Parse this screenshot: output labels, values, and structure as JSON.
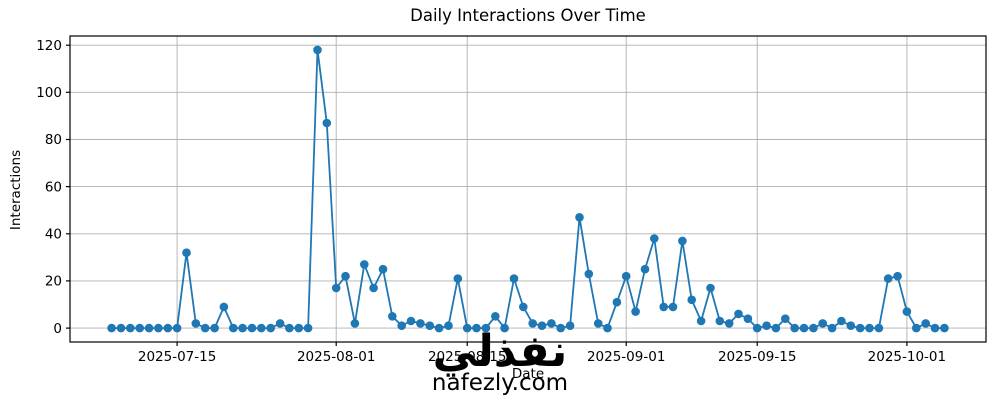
{
  "chart_data": {
    "type": "line",
    "title": "Daily Interactions Over Time",
    "xlabel": "Date",
    "ylabel": "Interactions",
    "series_color": "#1f77b4",
    "grid": true,
    "grid_color": "#b0b0b0",
    "legend": "none",
    "x": [
      "2025-07-08",
      "2025-07-09",
      "2025-07-10",
      "2025-07-11",
      "2025-07-12",
      "2025-07-13",
      "2025-07-14",
      "2025-07-15",
      "2025-07-16",
      "2025-07-17",
      "2025-07-18",
      "2025-07-19",
      "2025-07-20",
      "2025-07-21",
      "2025-07-22",
      "2025-07-23",
      "2025-07-24",
      "2025-07-25",
      "2025-07-26",
      "2025-07-27",
      "2025-07-28",
      "2025-07-29",
      "2025-07-30",
      "2025-07-31",
      "2025-08-01",
      "2025-08-02",
      "2025-08-03",
      "2025-08-04",
      "2025-08-05",
      "2025-08-06",
      "2025-08-07",
      "2025-08-08",
      "2025-08-09",
      "2025-08-10",
      "2025-08-11",
      "2025-08-12",
      "2025-08-13",
      "2025-08-14",
      "2025-08-15",
      "2025-08-16",
      "2025-08-17",
      "2025-08-18",
      "2025-08-19",
      "2025-08-20",
      "2025-08-21",
      "2025-08-22",
      "2025-08-23",
      "2025-08-24",
      "2025-08-25",
      "2025-08-26",
      "2025-08-27",
      "2025-08-28",
      "2025-08-29",
      "2025-08-30",
      "2025-08-31",
      "2025-09-01",
      "2025-09-02",
      "2025-09-03",
      "2025-09-04",
      "2025-09-05",
      "2025-09-06",
      "2025-09-07",
      "2025-09-08",
      "2025-09-09",
      "2025-09-10",
      "2025-09-11",
      "2025-09-12",
      "2025-09-13",
      "2025-09-14",
      "2025-09-15",
      "2025-09-16",
      "2025-09-17",
      "2025-09-18",
      "2025-09-19",
      "2025-09-20",
      "2025-09-21",
      "2025-09-22",
      "2025-09-23",
      "2025-09-24",
      "2025-09-25",
      "2025-09-26",
      "2025-09-27",
      "2025-09-28",
      "2025-09-29",
      "2025-09-30",
      "2025-10-01",
      "2025-10-02",
      "2025-10-03",
      "2025-10-04",
      "2025-10-05"
    ],
    "values": [
      0,
      0,
      0,
      0,
      0,
      0,
      0,
      0,
      32,
      2,
      0,
      0,
      9,
      0,
      0,
      0,
      0,
      0,
      2,
      0,
      0,
      0,
      118,
      87,
      17,
      22,
      2,
      27,
      17,
      25,
      5,
      1,
      3,
      2,
      1,
      0,
      1,
      21,
      0,
      0,
      0,
      5,
      0,
      21,
      9,
      2,
      1,
      2,
      0,
      1,
      47,
      23,
      2,
      0,
      11,
      22,
      7,
      25,
      38,
      9,
      9,
      37,
      12,
      3,
      17,
      3,
      2,
      6,
      4,
      0,
      1,
      0,
      4,
      0,
      0,
      0,
      2,
      0,
      3,
      1,
      0,
      0,
      0,
      21,
      22,
      7,
      0,
      2,
      0,
      0
    ],
    "y_ticks": [
      0,
      20,
      40,
      60,
      80,
      100,
      120
    ],
    "x_ticks": [
      {
        "index": 7,
        "label": "2025-07-15"
      },
      {
        "index": 24,
        "label": "2025-08-01"
      },
      {
        "index": 38,
        "label": "2025-08-15"
      },
      {
        "index": 55,
        "label": "2025-09-01"
      },
      {
        "index": 69,
        "label": "2025-09-15"
      },
      {
        "index": 85,
        "label": "2025-10-01"
      }
    ],
    "ylim": [
      0,
      120
    ],
    "x_axis_range": [
      -4.45,
      93.45
    ],
    "y_axis_range": [
      -5.9,
      123.9
    ]
  },
  "watermark": {
    "arabic": "نفذلي",
    "domain": "nafezly.com",
    "color": "#d8d8d8"
  }
}
